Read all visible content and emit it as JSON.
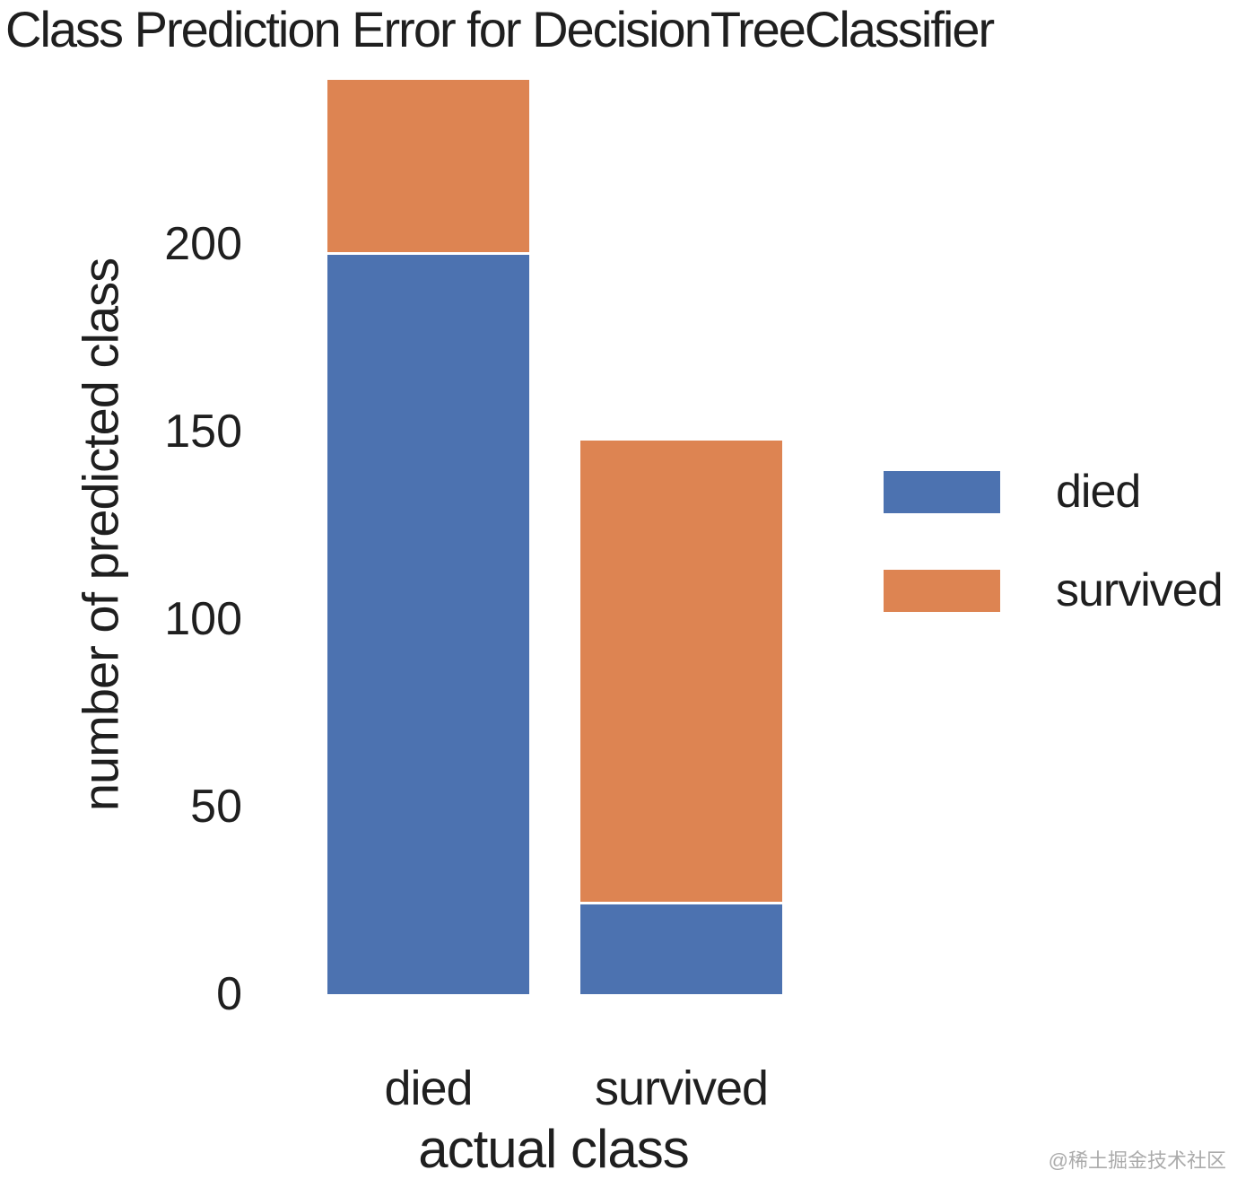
{
  "chart_data": {
    "type": "bar",
    "stacked": true,
    "title": "Class Prediction Error for DecisionTreeClassifier",
    "xlabel": "actual class",
    "ylabel": "number of predicted class",
    "categories": [
      "died",
      "survived"
    ],
    "series": [
      {
        "name": "died",
        "color": "#4C72B0",
        "values": [
          197,
          24
        ]
      },
      {
        "name": "survived",
        "color": "#DD8452",
        "values": [
          46,
          123
        ]
      }
    ],
    "ylim": [
      0,
      244
    ],
    "yticks": [
      0,
      50,
      100,
      150,
      200
    ],
    "grid": false,
    "legend_position": "center right"
  },
  "watermark": "@稀土掘金技术社区"
}
